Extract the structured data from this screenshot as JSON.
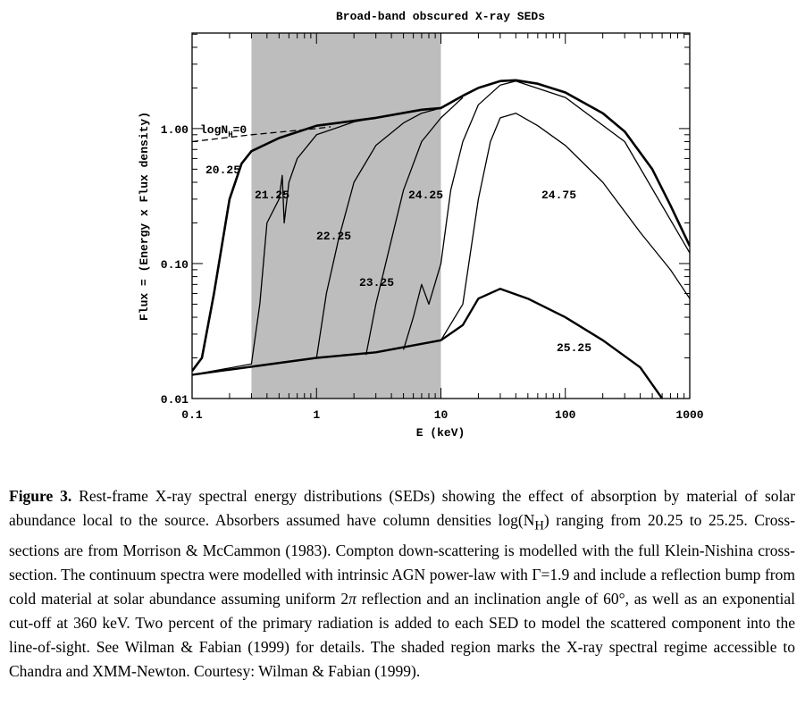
{
  "chart_data": {
    "type": "line",
    "title": "Broad-band obscured X-ray SEDs",
    "x_label": "E (keV)",
    "y_label": "Flux = (Energy x Flux density)",
    "xscale": "log",
    "yscale": "log",
    "xlim": [
      0.1,
      1000
    ],
    "ylim": [
      0.01,
      5.1
    ],
    "xticks": [
      0.1,
      1,
      10,
      100,
      1000
    ],
    "yticks": [
      0.01,
      {
        "value": 0.1,
        "label": "0.10"
      },
      {
        "value": 1,
        "label": "1.00"
      }
    ],
    "shaded_region": [
      0.3,
      10
    ],
    "shade_color": "#bdbdbd",
    "series": [
      {
        "name": "logN",
        "name_sub": "H",
        "name_suffix": "=0",
        "color": "#000000",
        "dashed": true,
        "width": 1.3,
        "x": [
          0.1,
          0.3,
          1,
          1.3
        ],
        "values": [
          0.8,
          0.9,
          1.0,
          1.03
        ]
      },
      {
        "name": "20.25",
        "color": "#000000",
        "width": 2.6,
        "x": [
          0.1,
          0.12,
          0.15,
          0.2,
          0.25,
          0.3,
          0.5,
          1,
          3,
          7,
          10,
          15,
          20,
          30,
          40,
          60,
          100,
          200,
          300,
          500,
          700,
          1000
        ],
        "values": [
          0.016,
          0.02,
          0.06,
          0.3,
          0.55,
          0.68,
          0.85,
          1.05,
          1.2,
          1.38,
          1.42,
          1.75,
          2.0,
          2.25,
          2.28,
          2.15,
          1.85,
          1.3,
          0.95,
          0.5,
          0.27,
          0.135
        ]
      },
      {
        "name": "21.25",
        "color": "#000000",
        "width": 1.3,
        "x": [
          0.1,
          0.3,
          0.35,
          0.4,
          0.5,
          0.53,
          0.55,
          0.6,
          0.7,
          1,
          2,
          3
        ],
        "values": [
          0.015,
          0.018,
          0.05,
          0.2,
          0.3,
          0.45,
          0.2,
          0.4,
          0.6,
          0.9,
          1.12,
          1.2
        ]
      },
      {
        "name": "22.25",
        "color": "#000000",
        "width": 1.3,
        "x": [
          1,
          1.2,
          1.5,
          2,
          3,
          5,
          7,
          10
        ],
        "values": [
          0.02,
          0.06,
          0.15,
          0.4,
          0.75,
          1.1,
          1.3,
          1.42
        ]
      },
      {
        "name": "23.25",
        "color": "#000000",
        "width": 1.3,
        "x": [
          2.5,
          3,
          4,
          5,
          7,
          10,
          15
        ],
        "values": [
          0.021,
          0.05,
          0.15,
          0.35,
          0.8,
          1.2,
          1.7
        ]
      },
      {
        "name": "24.25",
        "color": "#000000",
        "width": 1.3,
        "x": [
          5,
          6,
          7,
          8,
          10,
          12,
          15,
          20,
          30,
          40,
          100,
          300,
          1000
        ],
        "values": [
          0.023,
          0.04,
          0.07,
          0.05,
          0.1,
          0.35,
          0.8,
          1.5,
          2.1,
          2.25,
          1.7,
          0.8,
          0.12
        ]
      },
      {
        "name": "24.75",
        "color": "#000000",
        "width": 1.3,
        "x": [
          10,
          15,
          20,
          25,
          30,
          40,
          60,
          100,
          200,
          400,
          700,
          1000
        ],
        "values": [
          0.027,
          0.05,
          0.3,
          0.8,
          1.2,
          1.3,
          1.05,
          0.75,
          0.4,
          0.17,
          0.09,
          0.055
        ]
      },
      {
        "name": "25.25",
        "color": "#000000",
        "width": 2.4,
        "x": [
          0.1,
          1,
          3,
          10,
          15,
          20,
          30,
          50,
          100,
          200,
          400,
          600
        ],
        "values": [
          0.015,
          0.02,
          0.022,
          0.027,
          0.035,
          0.055,
          0.065,
          0.055,
          0.04,
          0.027,
          0.017,
          0.01
        ]
      }
    ]
  },
  "caption": {
    "label": "Figure 3.",
    "text1": "Rest-frame X-ray spectral energy distributions (SEDs) showing the effect of absorption by material of solar abundance local to the source. Absorbers assumed have column densities log(N",
    "sub": "H",
    "text2": ") ranging from 20.25 to 25.25. Cross-sections are from Morrison & McCammon (1983). Compton down-scattering is modelled with the full Klein-Nishina cross-section. The continuum spectra were modelled with intrinsic AGN power-law with Γ=1.9 and include a reflection bump from cold material at solar abundance assuming uniform 2",
    "italic": "π",
    "text3": " reflection and an inclination angle of 60°, as well as an exponential cut-off at 360 keV. Two percent of the primary radiation is added to each SED to model the scattered component into the line-of-sight. See Wilman & Fabian (1999) for details. The shaded region marks the X-ray spectral regime accessible to Chandra and XMM-Newton. Courtesy: Wilman & Fabian (1999)."
  }
}
